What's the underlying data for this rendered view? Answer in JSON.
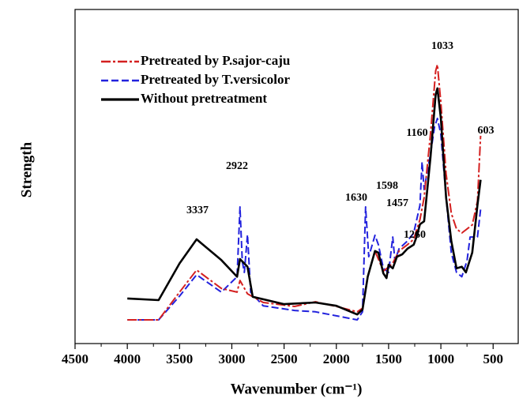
{
  "chart_data": {
    "type": "line",
    "x_label": "Wavenumber (cm⁻¹)",
    "y_label": "Strength",
    "xlim": [
      4500,
      260
    ],
    "xticks": [
      4500,
      4000,
      3500,
      3000,
      2500,
      2000,
      1500,
      1000,
      500
    ],
    "ylim": [
      0,
      100
    ],
    "legend": "upper left",
    "annotations": [
      "3337",
      "2922",
      "1630",
      "1598",
      "1457",
      "1260",
      "1160",
      "1033",
      "603"
    ],
    "series": [
      {
        "name": "Pretreated by P.sajor-caju",
        "color": "#d42020",
        "dash": "dashdot",
        "x": [
          4000,
          3700,
          3500,
          3337,
          3100,
          2950,
          2922,
          2850,
          2700,
          2400,
          2200,
          2000,
          1800,
          1750,
          1700,
          1630,
          1550,
          1500,
          1460,
          1400,
          1320,
          1260,
          1200,
          1160,
          1100,
          1050,
          1033,
          1000,
          950,
          900,
          850,
          800,
          700,
          650,
          620
        ],
        "values": [
          7.1,
          7.1,
          15.4,
          22,
          16.5,
          15.4,
          18.9,
          14.9,
          12.3,
          11.1,
          12.5,
          11.1,
          9.5,
          10.6,
          20,
          27.7,
          21.7,
          22.9,
          24.1,
          27.7,
          29.6,
          31.2,
          37.1,
          43.7,
          62.6,
          81.6,
          83.5,
          72.1,
          50.8,
          39,
          34.3,
          33.1,
          35.5,
          42.6,
          62.2
        ]
      },
      {
        "name": "Pretreated by T.versicolor",
        "color": "#2222dd",
        "dash": "dash",
        "x": [
          4000,
          3700,
          3500,
          3337,
          3100,
          2950,
          2922,
          2900,
          2880,
          2850,
          2820,
          2700,
          2400,
          2200,
          2000,
          1800,
          1750,
          1720,
          1690,
          1630,
          1598,
          1550,
          1500,
          1460,
          1440,
          1400,
          1320,
          1260,
          1200,
          1180,
          1160,
          1100,
          1060,
          1033,
          1000,
          950,
          900,
          850,
          800,
          750,
          720,
          650,
          620
        ],
        "values": [
          7.1,
          7.1,
          14.2,
          20.6,
          15.4,
          20,
          40.9,
          24.6,
          21.3,
          32.6,
          15.4,
          11.3,
          9.9,
          9.5,
          8.3,
          7.1,
          9.5,
          40.9,
          26,
          32.4,
          29.6,
          22.5,
          21.3,
          31.9,
          24.8,
          28.4,
          30.7,
          33.1,
          41.4,
          54.4,
          46.1,
          56.7,
          65,
          67.4,
          62.6,
          43.7,
          27.2,
          21.3,
          20,
          24.8,
          31.9,
          31.9,
          40.2
        ]
      },
      {
        "name": "Without pretreatment",
        "color": "#000000",
        "dash": "solid",
        "x": [
          4000,
          3700,
          3500,
          3337,
          3100,
          2950,
          2922,
          2850,
          2800,
          2500,
          2200,
          2000,
          1800,
          1750,
          1700,
          1630,
          1598,
          1550,
          1520,
          1500,
          1460,
          1420,
          1370,
          1320,
          1260,
          1230,
          1200,
          1160,
          1100,
          1050,
          1033,
          1000,
          950,
          900,
          850,
          800,
          760,
          700,
          650,
          620
        ],
        "values": [
          13.5,
          13,
          24,
          31.2,
          25,
          20,
          25.3,
          23,
          14,
          11.8,
          12.3,
          11.3,
          8.7,
          10.2,
          20,
          27.7,
          27.2,
          21,
          19.6,
          23.6,
          22.5,
          26,
          26.7,
          28.4,
          29.6,
          32.2,
          35.7,
          36.6,
          55.6,
          74.5,
          76.4,
          67.4,
          43.7,
          30.7,
          22.5,
          23,
          21.3,
          27.2,
          41.4,
          49
        ]
      }
    ]
  }
}
